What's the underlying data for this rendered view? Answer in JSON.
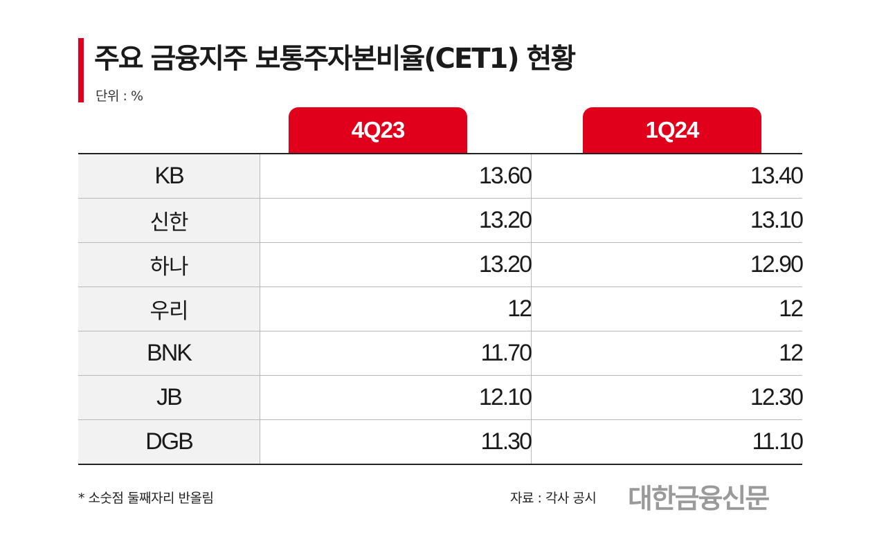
{
  "header": {
    "title": "주요 금융지주 보통주자본비율(CET1) 현황",
    "unit": "단위 : %",
    "accent_color": "#e0001b"
  },
  "chart_data": {
    "type": "table",
    "title": "주요 금융지주 보통주자본비율(CET1) 현황",
    "unit": "%",
    "columns": [
      "4Q23",
      "1Q24"
    ],
    "rows": [
      {
        "name": "KB",
        "values": [
          "13.60",
          "13.40"
        ]
      },
      {
        "name": "신한",
        "values": [
          "13.20",
          "13.10"
        ]
      },
      {
        "name": "하나",
        "values": [
          "13.20",
          "12.90"
        ]
      },
      {
        "name": "우리",
        "values": [
          "12",
          "12"
        ]
      },
      {
        "name": "BNK",
        "values": [
          "11.70",
          "12"
        ]
      },
      {
        "name": "JB",
        "values": [
          "12.10",
          "12.30"
        ]
      },
      {
        "name": "DGB",
        "values": [
          "11.30",
          "11.10"
        ]
      }
    ]
  },
  "footer": {
    "footnote": "* 소숫점 둘째자리 반올림",
    "source": "자료 : 각사 공시",
    "brand": "대한금융신문"
  }
}
